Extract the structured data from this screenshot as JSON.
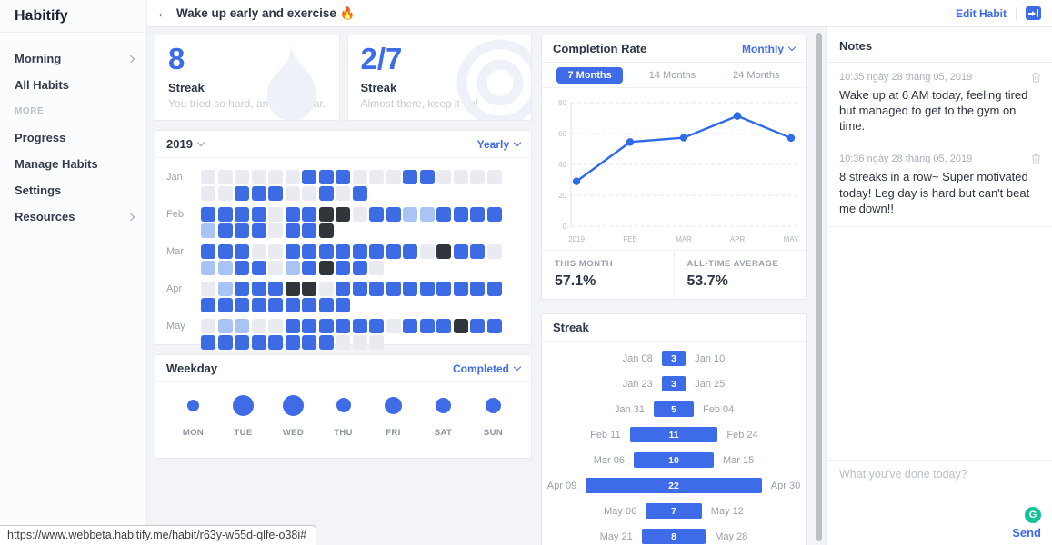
{
  "sidebar": {
    "logo": "Habitify",
    "items": [
      {
        "label": "Morning",
        "chevron": true
      },
      {
        "label": "All Habits"
      },
      {
        "label": "MORE",
        "section": true
      },
      {
        "label": "Progress"
      },
      {
        "label": "Manage Habits"
      },
      {
        "label": "Settings"
      },
      {
        "label": "Resources",
        "chevron": true
      }
    ]
  },
  "header": {
    "back_icon": "←",
    "title": "Wake up early and exercise 🔥",
    "edit_habit": "Edit Habit"
  },
  "stat_cards": [
    {
      "value": "8",
      "label": "Streak",
      "subtitle": "You tried so hard, and get so far.",
      "watermark": "flame-icon"
    },
    {
      "value": "2/7",
      "label": "Streak",
      "subtitle": "Almost there, keep it up!",
      "watermark": "circles-icon"
    }
  ],
  "calendar": {
    "year": "2019",
    "period": "Yearly",
    "cell_colors": {
      "b": "#3d6be4",
      "l": "#a9c4f4",
      "d": "#30353c",
      "g": "#e9ebf1"
    },
    "cell_meaning": {
      "b": "completed",
      "l": "partial",
      "d": "failed",
      "g": "none"
    },
    "months": [
      {
        "label": "Jan",
        "rows": [
          "ggggggbbbgggbbgggg",
          "ggbbbggbgb"
        ]
      },
      {
        "label": "Feb",
        "rows": [
          "bbbbgbbddgbbllbbbb",
          "lbbbgbbd"
        ]
      },
      {
        "label": "Mar",
        "rows": [
          "bbbggbbbbbbbbgdbbg",
          "llbbglbdbbg"
        ]
      },
      {
        "label": "Apr",
        "rows": [
          "glbbbddgbbbbbbbbbb",
          "bbbbbbbbb"
        ]
      },
      {
        "label": "May",
        "rows": [
          "gllggbbbbbbgbbbdbb",
          "bbbbbbbbggg"
        ]
      }
    ]
  },
  "weekday": {
    "title": "Weekday",
    "filter": "Completed",
    "days": [
      {
        "label": "MON",
        "size": 13
      },
      {
        "label": "TUE",
        "size": 23
      },
      {
        "label": "WED",
        "size": 23
      },
      {
        "label": "THU",
        "size": 16
      },
      {
        "label": "FRI",
        "size": 19
      },
      {
        "label": "SAT",
        "size": 17
      },
      {
        "label": "SUN",
        "size": 17
      }
    ]
  },
  "completion": {
    "title": "Completion Rate",
    "filter": "Monthly",
    "tabs": [
      {
        "label": "7 Months",
        "active": true
      },
      {
        "label": "14 Months",
        "active": false
      },
      {
        "label": "24 Months",
        "active": false
      }
    ],
    "chart": {
      "type": "line",
      "x": [
        "2019",
        "FEB",
        "MAR",
        "APR",
        "MAY"
      ],
      "values": [
        29,
        54.5,
        57.3,
        71.4,
        57.1
      ],
      "ylim": [
        0,
        80
      ],
      "yticks": [
        0,
        20,
        40,
        60,
        80
      ],
      "line_color": "#2f6ae8",
      "grid": "dashed-horizontal"
    },
    "this_month_label": "THIS MONTH",
    "this_month_value": "57.1%",
    "alltime_label": "ALL-TIME AVERAGE",
    "alltime_value": "53.7%"
  },
  "streak_panel": {
    "title": "Streak",
    "bar_color": "#3e6be8",
    "rows": [
      {
        "start": "Jan 08",
        "value": 3,
        "end": "Jan 10"
      },
      {
        "start": "Jan 23",
        "value": 3,
        "end": "Jan 25"
      },
      {
        "start": "Jan 31",
        "value": 5,
        "end": "Feb 04"
      },
      {
        "start": "Feb 11",
        "value": 11,
        "end": "Feb 24"
      },
      {
        "start": "Mar 06",
        "value": 10,
        "end": "Mar 15"
      },
      {
        "start": "Apr 09",
        "value": 22,
        "end": "Apr 30"
      },
      {
        "start": "May 06",
        "value": 7,
        "end": "May 12"
      },
      {
        "start": "May 21",
        "value": 8,
        "end": "May 28"
      }
    ]
  },
  "notes": {
    "title": "Notes",
    "items": [
      {
        "time": "10:35 ngày 28 tháng 05, 2019",
        "text": "Wake up at 6 AM today, feeling tired but managed to get to the gym on time."
      },
      {
        "time": "10:36 ngày 28 tháng 05, 2019",
        "text": "8 streaks in a row~ Super motivated today! Leg day is hard but can't beat me down!!"
      }
    ],
    "input_placeholder": "What you've done today?",
    "grammarly_letter": "G",
    "send_label": "Send"
  },
  "browser": {
    "status_url": "https://www.webbeta.habitify.me/habit/r63y-w55d-qlfe-o38i#"
  },
  "colors": {
    "primary_blue": "#3e6be8",
    "light_blue": "#a9c4f4",
    "dark_cell": "#30353c",
    "empty_cell": "#e9ebf1",
    "grammarly_green": "#15c39a",
    "background": "#f2f4f7"
  }
}
